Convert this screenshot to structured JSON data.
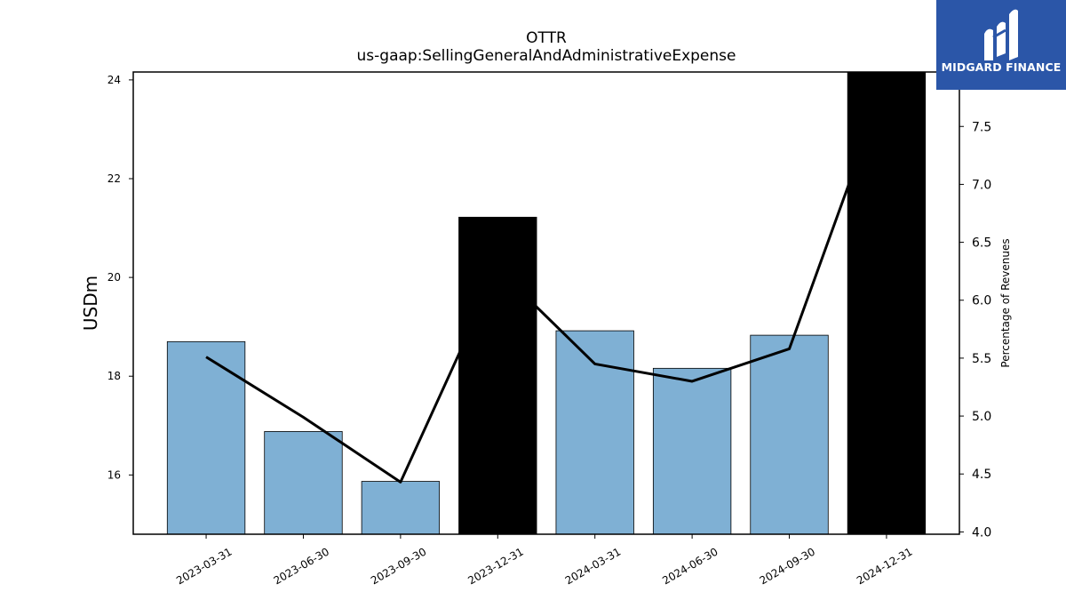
{
  "chart_data": {
    "type": "bar",
    "title": "OTTR",
    "subtitle": "us-gaap:SellingGeneralAndAdministrativeExpense",
    "ylabel": "USDm",
    "ylabel_right": "Percentage of Revenues",
    "categories": [
      "2023-03-31",
      "2023-06-30",
      "2023-09-30",
      "2023-12-31",
      "2024-03-31",
      "2024-06-30",
      "2024-09-30",
      "2024-12-31"
    ],
    "series": [
      {
        "values": [
          18.7,
          16.88,
          15.87,
          21.22,
          18.92,
          18.16,
          18.83,
          24.4
        ]
      },
      {
        "values": [
          5.51,
          4.99,
          4.43,
          6.27,
          5.45,
          5.3,
          5.58,
          7.9
        ]
      }
    ],
    "bar_is_q4": [
      false,
      false,
      false,
      true,
      false,
      false,
      false,
      true
    ],
    "ylim": [
      14.8,
      24.16
    ],
    "ylim_right": [
      3.98,
      7.97
    ],
    "yticks": [
      16,
      18,
      20,
      22,
      24
    ],
    "yticks_right": [
      "4.0",
      "4.5",
      "5.0",
      "5.5",
      "6.0",
      "6.5",
      "7.0",
      "7.5"
    ],
    "legend": "none",
    "grid": false,
    "colors": {
      "bar": "#7fb0d4",
      "bar_q4": "#000000",
      "line": "#000000"
    }
  },
  "logo": {
    "text": "MIDGARD FINANCE",
    "icon": "midgard-m-icon",
    "background": "#2b56a8"
  }
}
